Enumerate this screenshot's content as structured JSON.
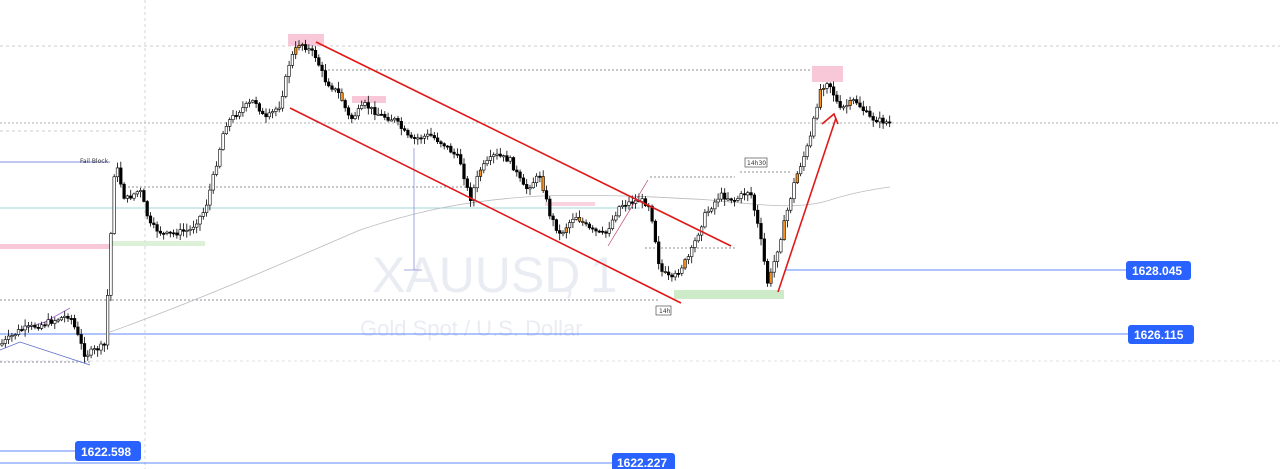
{
  "chart_data": {
    "type": "candlestick",
    "symbol": "XAUUSD",
    "timeframe": "1",
    "description": "Gold Spot / U.S. Dollar",
    "price_levels": [
      {
        "value": "1628.045",
        "color": "#2962ff"
      },
      {
        "value": "1626.115",
        "color": "#2962ff"
      },
      {
        "value": "1622.598",
        "color": "#2962ff"
      },
      {
        "value": "1622.227",
        "color": "#2962ff"
      }
    ],
    "annotations": [
      "Fail Block",
      "14h30",
      "14h"
    ],
    "colors": {
      "bull": "#ffffff",
      "bear": "#000000",
      "highlight": "#f7941d",
      "channel": "#e01919",
      "supply_zone": "#f8c8d8",
      "demand_zone": "#cdebc8",
      "level_line": "#2962ff"
    }
  }
}
